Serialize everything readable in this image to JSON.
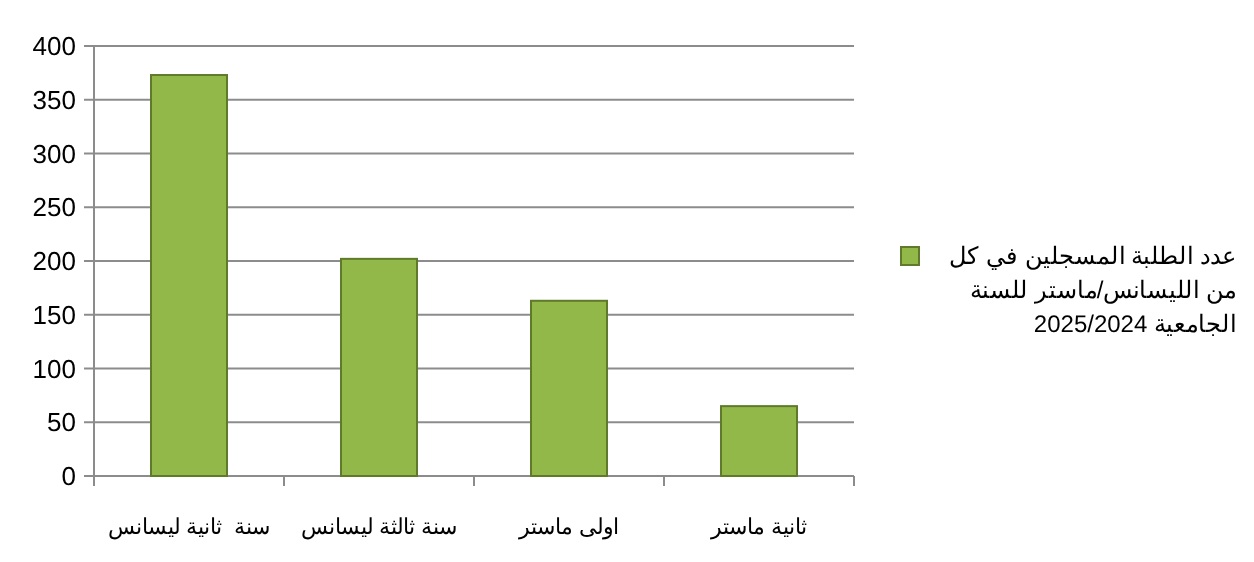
{
  "chart_data": {
    "type": "bar",
    "categories": [
      "سنة  ثانية ليسانس",
      "سنة ثالثة ليسانس",
      "اولى ماستر",
      "ثانية ماستر"
    ],
    "series": [
      {
        "name": "عدد الطلبة المسجلين في كل من الليسانس/ماستر للسنة الجامعية 2025/2024",
        "color": "#92b84a",
        "values": [
          373,
          202,
          163,
          65
        ]
      }
    ],
    "ylim": [
      0,
      400
    ],
    "yticks": [
      0,
      50,
      100,
      150,
      200,
      250,
      300,
      350,
      400
    ],
    "grid": "y",
    "legend": "right"
  }
}
